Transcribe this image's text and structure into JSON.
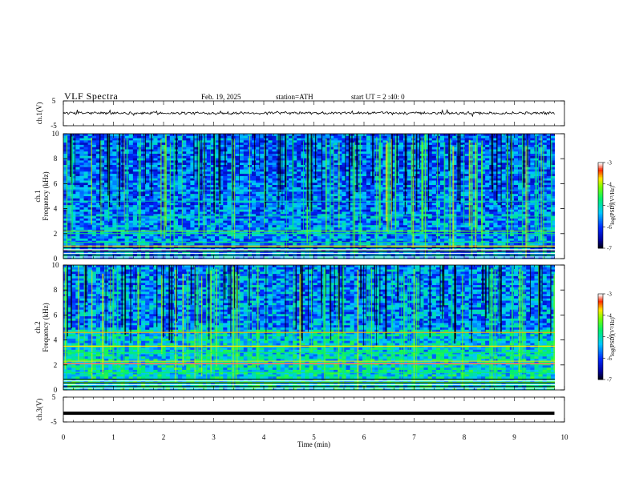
{
  "header": {
    "title": "VLF  Spectra",
    "date": "Feb. 19, 2025",
    "station": "station=ATH",
    "start": "start  UT  =   2 :40: 0"
  },
  "chart_data": [
    {
      "type": "line",
      "ylabel": "ch.1(V)",
      "ylim": [
        -5,
        5
      ],
      "yticks": [
        "5",
        "-5"
      ],
      "xlim": [
        0,
        10
      ],
      "baseline": 0.1,
      "description": "noisy waveform"
    },
    {
      "type": "heatmap",
      "ylabel": "ch.1\nFrequency  (kHz)",
      "ylim": [
        0,
        10
      ],
      "yticks": [
        "0",
        "2",
        "4",
        "6",
        "8",
        "10"
      ],
      "xlim": [
        0,
        10
      ],
      "colorbar": {
        "label": "log(PSD)(V²/Hz)",
        "range": [
          -7,
          -3
        ],
        "ticks": [
          "-3",
          "-4",
          "-5",
          "-6",
          "-7"
        ]
      }
    },
    {
      "type": "heatmap",
      "ylabel": "ch.2\nFrequency  (kHz)",
      "ylim": [
        0,
        10
      ],
      "yticks": [
        "0",
        "2",
        "4",
        "6",
        "8",
        "10"
      ],
      "xlim": [
        0,
        10
      ],
      "colorbar": {
        "label": "log(PSD)(V²/Hz)",
        "range": [
          -7,
          -3
        ],
        "ticks": [
          "-3",
          "-4",
          "-5",
          "-6",
          "-7"
        ]
      }
    },
    {
      "type": "line",
      "ylabel": "ch.3(V)",
      "ylim": [
        -5,
        5
      ],
      "yticks": [
        "5",
        "-5"
      ],
      "xlim": [
        0,
        10
      ],
      "baseline": -1.5,
      "xlabel": "Time  (min)",
      "xticks": [
        "0",
        "1",
        "2",
        "3",
        "4",
        "5",
        "6",
        "7",
        "8",
        "9",
        "10"
      ]
    }
  ]
}
